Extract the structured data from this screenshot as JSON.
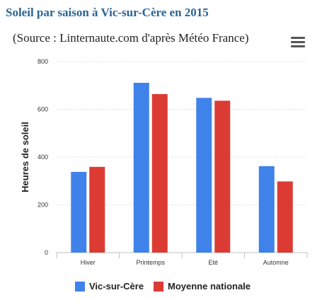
{
  "title": "Soleil par saison à Vic-sur-Cère en 2015",
  "subtitle": "(Source : Linternaute.com d'après Météo France)",
  "menu_icon": "hamburger-menu-icon",
  "colors": {
    "series_1": "#3f82ea",
    "series_2": "#dc3b34",
    "title": "#2a6496"
  },
  "chart_data": {
    "type": "bar",
    "categories": [
      "Hiver",
      "Printemps",
      "Eté",
      "Automne"
    ],
    "series": [
      {
        "name": "Vic-sur-Cère",
        "values": [
          338,
          711,
          648,
          362
        ]
      },
      {
        "name": "Moyenne nationale",
        "values": [
          359,
          664,
          636,
          298
        ]
      }
    ],
    "ylabel": "Heures de soleil",
    "xlabel": "",
    "ylim": [
      0,
      800
    ],
    "yticks": [
      "0",
      "200",
      "400",
      "600",
      "800"
    ],
    "grid": true,
    "legend": "bottom"
  }
}
